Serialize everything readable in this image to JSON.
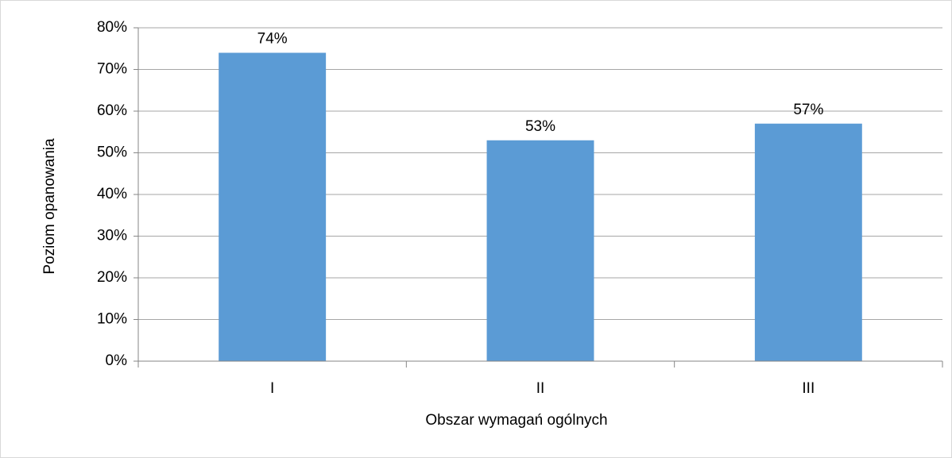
{
  "chart_data": {
    "type": "bar",
    "categories": [
      "I",
      "II",
      "III"
    ],
    "values": [
      74,
      53,
      57
    ],
    "value_labels": [
      "74%",
      "53%",
      "57%"
    ],
    "color": "#5b9bd5",
    "x_label": "Obszar wymagań ogólnych",
    "y_label": "Poziom opanowania",
    "ylim": [
      0,
      80
    ],
    "yticks": [
      {
        "value": 0,
        "label": "0%"
      },
      {
        "value": 10,
        "label": "10%"
      },
      {
        "value": 20,
        "label": "20%"
      },
      {
        "value": 30,
        "label": "30%"
      },
      {
        "value": 40,
        "label": "40%"
      },
      {
        "value": 50,
        "label": "50%"
      },
      {
        "value": 60,
        "label": "60%"
      },
      {
        "value": 70,
        "label": "70%"
      },
      {
        "value": 80,
        "label": "80%"
      }
    ],
    "grid": true
  }
}
